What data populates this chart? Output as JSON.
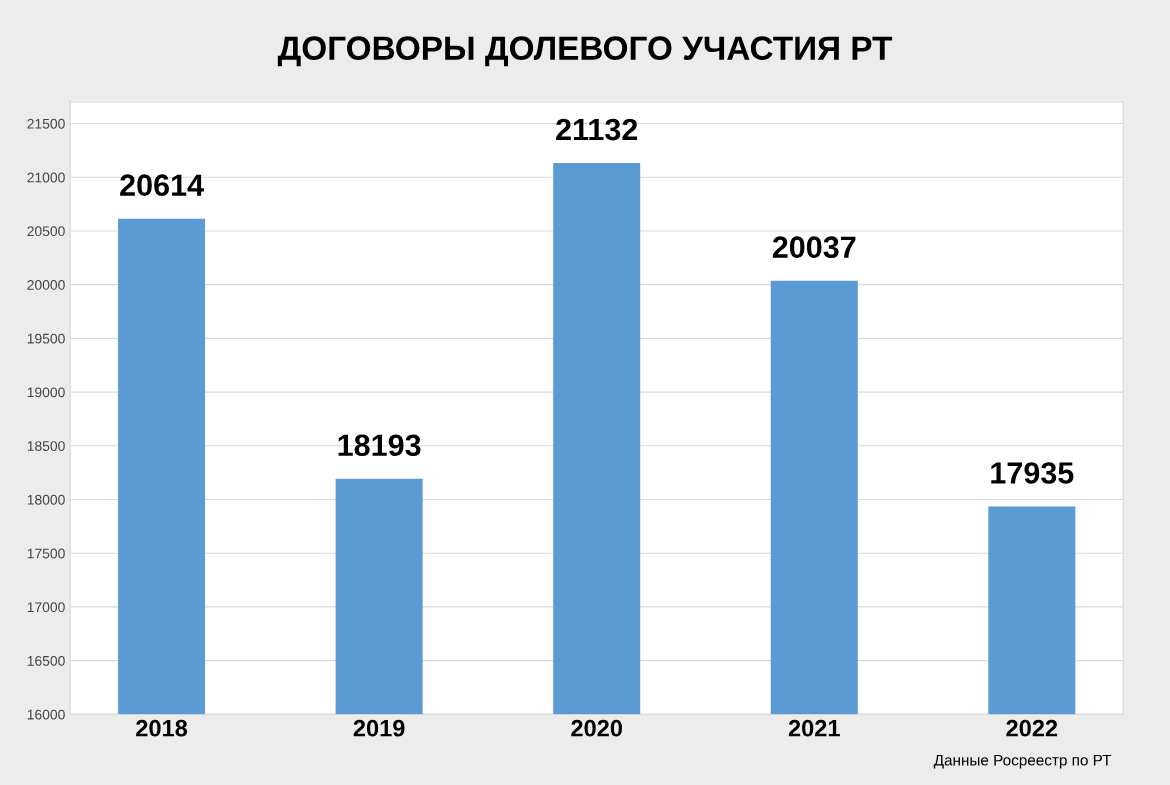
{
  "chart_data": {
    "type": "bar",
    "title": "ДОГОВОРЫ ДОЛЕВОГО УЧАСТИЯ РТ",
    "categories": [
      "2018",
      "2019",
      "2020",
      "2021",
      "2022"
    ],
    "values": [
      20614,
      18193,
      21132,
      20037,
      17935
    ],
    "color": "#5b9bd5",
    "ylim": [
      16000,
      21700
    ],
    "yticks": [
      16000,
      16500,
      17000,
      17500,
      18000,
      18500,
      19000,
      19500,
      20000,
      20500,
      21000,
      21500
    ],
    "grid": "y",
    "data_labels": true,
    "legend": false,
    "annotations": [
      "Данные Росреестр по РТ"
    ]
  }
}
